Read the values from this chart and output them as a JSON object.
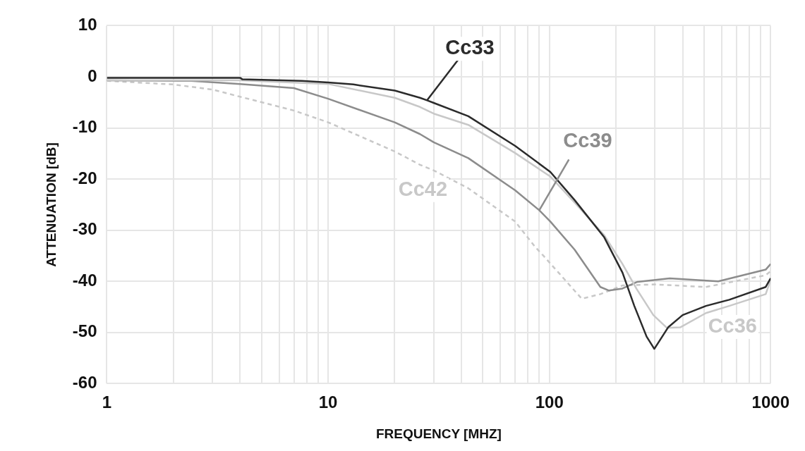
{
  "chart_data": {
    "type": "line",
    "xlabel": "FREQUENCY [MHZ]",
    "ylabel": "ATTENUATION [dB]",
    "log": "x",
    "xlim": [
      1,
      1000
    ],
    "ylim": [
      -60,
      10
    ],
    "xticks": [
      1,
      {
        "value": 2,
        "label": null
      },
      {
        "value": 3,
        "label": null
      },
      {
        "value": 4,
        "label": null
      },
      {
        "value": 5,
        "label": null
      },
      {
        "value": 6,
        "label": null
      },
      {
        "value": 7,
        "label": null
      },
      {
        "value": 8,
        "label": null
      },
      {
        "value": 9,
        "label": null
      },
      10,
      {
        "value": 20,
        "label": null
      },
      {
        "value": 30,
        "label": null
      },
      {
        "value": 40,
        "label": null
      },
      {
        "value": 50,
        "label": null
      },
      {
        "value": 60,
        "label": null
      },
      {
        "value": 70,
        "label": null
      },
      {
        "value": 80,
        "label": null
      },
      {
        "value": 90,
        "label": null
      },
      100,
      {
        "value": 200,
        "label": null
      },
      {
        "value": 300,
        "label": null
      },
      {
        "value": 400,
        "label": null
      },
      {
        "value": 500,
        "label": null
      },
      {
        "value": 600,
        "label": null
      },
      {
        "value": 700,
        "label": null
      },
      {
        "value": 800,
        "label": null
      },
      {
        "value": 900,
        "label": null
      },
      1000
    ],
    "yticks": [
      -60,
      -50,
      -40,
      -30,
      -20,
      -10,
      0,
      10
    ],
    "grid": true,
    "legend": false,
    "marker": "none",
    "series": [
      {
        "name": "Cc33",
        "color": "#2b2b2b",
        "line_style": "solid",
        "x": [
          1,
          4,
          4.1,
          7.6,
          10,
          13,
          20,
          26,
          28,
          30,
          43,
          70,
          101,
          130,
          177,
          214,
          242,
          275,
          298,
          344,
          400,
          510,
          650,
          950,
          1000
        ],
        "values": [
          -0.2,
          -0.2,
          -0.5,
          -0.8,
          -1.1,
          -1.5,
          -2.7,
          -4.1,
          -4.6,
          -5.1,
          -7.7,
          -13.5,
          -18.6,
          -24.1,
          -31.4,
          -38.3,
          -44.8,
          -50.8,
          -53.2,
          -49,
          -46.6,
          -44.8,
          -43.6,
          -41.1,
          -39.4
        ]
      },
      {
        "name": "Cc36",
        "color": "#c8c8c8",
        "line_style": "solid",
        "x": [
          1,
          4,
          10,
          20,
          26,
          30,
          43,
          70,
          101,
          130,
          177,
          214,
          248,
          295,
          340,
          390,
          510,
          650,
          950,
          1000
        ],
        "values": [
          -0.7,
          -0.7,
          -1.4,
          -4.1,
          -5.9,
          -7.2,
          -9.4,
          -14.9,
          -19.5,
          -24.6,
          -31,
          -36.6,
          -41.5,
          -46.6,
          -49.1,
          -49,
          -46.2,
          -44.8,
          -42.5,
          -39.7
        ]
      },
      {
        "name": "Cc39",
        "color": "#8c8c8c",
        "line_style": "solid",
        "x": [
          1,
          2.4,
          4,
          7,
          10,
          20,
          26,
          30,
          43,
          70,
          90,
          101,
          130,
          170,
          186,
          214,
          250,
          350,
          580,
          950,
          1000
        ],
        "values": [
          -0.7,
          -0.8,
          -1.4,
          -2.2,
          -4.3,
          -8.9,
          -11.2,
          -12.8,
          -15.9,
          -22.2,
          -26.1,
          -28.3,
          -33.8,
          -41.1,
          -41.8,
          -41.4,
          -40.1,
          -39.4,
          -40,
          -37.7,
          -36.6
        ]
      },
      {
        "name": "Cc42",
        "color": "#c8c8c8",
        "line_style": "dashed",
        "x": [
          1,
          2,
          3,
          4,
          7,
          10,
          20,
          26,
          30,
          43,
          70,
          86,
          94,
          110,
          140,
          170,
          214,
          300,
          510,
          950,
          1000
        ],
        "values": [
          -0.8,
          -1.5,
          -2.5,
          -3.9,
          -6.6,
          -8.9,
          -14.6,
          -17.2,
          -18.3,
          -21.8,
          -28.3,
          -33.2,
          -35,
          -38.3,
          -43.4,
          -42.5,
          -40.8,
          -40.6,
          -41.1,
          -38.8,
          -38
        ]
      }
    ]
  }
}
